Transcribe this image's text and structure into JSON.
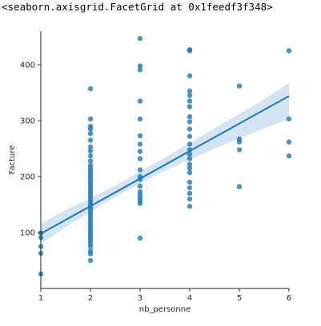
{
  "output_text": "<seaborn.axisgrid.FacetGrid at 0x1feedf3f348>",
  "colors": {
    "points": "#1f77b4",
    "line": "#1f77b4",
    "ci_band": "#c6dbef",
    "axis": "#262626"
  },
  "chart_data": {
    "type": "scatter",
    "title": "",
    "xlabel": "nb_personne",
    "ylabel": "Facture",
    "xlim": [
      1,
      6
    ],
    "ylim": [
      0,
      460
    ],
    "xticks": [
      1,
      2,
      3,
      4,
      5,
      6
    ],
    "yticks": [
      100,
      200,
      300,
      400
    ],
    "grid": false,
    "points": [
      {
        "x": 1,
        "y": 26
      },
      {
        "x": 1,
        "y": 63
      },
      {
        "x": 1,
        "y": 75
      },
      {
        "x": 1,
        "y": 91
      },
      {
        "x": 1,
        "y": 99
      },
      {
        "x": 2,
        "y": 50
      },
      {
        "x": 2,
        "y": 62
      },
      {
        "x": 2,
        "y": 67
      },
      {
        "x": 2,
        "y": 75
      },
      {
        "x": 2,
        "y": 80
      },
      {
        "x": 2,
        "y": 85
      },
      {
        "x": 2,
        "y": 90
      },
      {
        "x": 2,
        "y": 95
      },
      {
        "x": 2,
        "y": 100
      },
      {
        "x": 2,
        "y": 105
      },
      {
        "x": 2,
        "y": 110
      },
      {
        "x": 2,
        "y": 115
      },
      {
        "x": 2,
        "y": 120
      },
      {
        "x": 2,
        "y": 125
      },
      {
        "x": 2,
        "y": 130
      },
      {
        "x": 2,
        "y": 135
      },
      {
        "x": 2,
        "y": 140
      },
      {
        "x": 2,
        "y": 145
      },
      {
        "x": 2,
        "y": 150
      },
      {
        "x": 2,
        "y": 155
      },
      {
        "x": 2,
        "y": 160
      },
      {
        "x": 2,
        "y": 165
      },
      {
        "x": 2,
        "y": 170
      },
      {
        "x": 2,
        "y": 175
      },
      {
        "x": 2,
        "y": 180
      },
      {
        "x": 2,
        "y": 185
      },
      {
        "x": 2,
        "y": 190
      },
      {
        "x": 2,
        "y": 195
      },
      {
        "x": 2,
        "y": 200
      },
      {
        "x": 2,
        "y": 205
      },
      {
        "x": 2,
        "y": 210
      },
      {
        "x": 2,
        "y": 215
      },
      {
        "x": 2,
        "y": 220
      },
      {
        "x": 2,
        "y": 228
      },
      {
        "x": 2,
        "y": 237
      },
      {
        "x": 2,
        "y": 246
      },
      {
        "x": 2,
        "y": 253
      },
      {
        "x": 2,
        "y": 265
      },
      {
        "x": 2,
        "y": 277
      },
      {
        "x": 2,
        "y": 285
      },
      {
        "x": 2,
        "y": 290
      },
      {
        "x": 2,
        "y": 303
      },
      {
        "x": 2,
        "y": 357
      },
      {
        "x": 3,
        "y": 90
      },
      {
        "x": 3,
        "y": 152
      },
      {
        "x": 3,
        "y": 157
      },
      {
        "x": 3,
        "y": 162
      },
      {
        "x": 3,
        "y": 167
      },
      {
        "x": 3,
        "y": 173
      },
      {
        "x": 3,
        "y": 183
      },
      {
        "x": 3,
        "y": 195
      },
      {
        "x": 3,
        "y": 200
      },
      {
        "x": 3,
        "y": 212
      },
      {
        "x": 3,
        "y": 232
      },
      {
        "x": 3,
        "y": 245
      },
      {
        "x": 3,
        "y": 258
      },
      {
        "x": 3,
        "y": 273
      },
      {
        "x": 3,
        "y": 303
      },
      {
        "x": 3,
        "y": 335
      },
      {
        "x": 3,
        "y": 391
      },
      {
        "x": 3,
        "y": 398
      },
      {
        "x": 3,
        "y": 447
      },
      {
        "x": 4,
        "y": 147
      },
      {
        "x": 4,
        "y": 160
      },
      {
        "x": 4,
        "y": 170
      },
      {
        "x": 4,
        "y": 180
      },
      {
        "x": 4,
        "y": 190
      },
      {
        "x": 4,
        "y": 207
      },
      {
        "x": 4,
        "y": 215
      },
      {
        "x": 4,
        "y": 222
      },
      {
        "x": 4,
        "y": 232
      },
      {
        "x": 4,
        "y": 240
      },
      {
        "x": 4,
        "y": 248
      },
      {
        "x": 4,
        "y": 258
      },
      {
        "x": 4,
        "y": 272
      },
      {
        "x": 4,
        "y": 285
      },
      {
        "x": 4,
        "y": 298
      },
      {
        "x": 4,
        "y": 307
      },
      {
        "x": 4,
        "y": 325
      },
      {
        "x": 4,
        "y": 335
      },
      {
        "x": 4,
        "y": 345
      },
      {
        "x": 4,
        "y": 353
      },
      {
        "x": 4,
        "y": 380
      },
      {
        "x": 4,
        "y": 425
      },
      {
        "x": 4,
        "y": 427
      },
      {
        "x": 5,
        "y": 182
      },
      {
        "x": 5,
        "y": 248
      },
      {
        "x": 5,
        "y": 262
      },
      {
        "x": 5,
        "y": 267
      },
      {
        "x": 5,
        "y": 362
      },
      {
        "x": 6,
        "y": 237
      },
      {
        "x": 6,
        "y": 262
      },
      {
        "x": 6,
        "y": 303
      },
      {
        "x": 6,
        "y": 425
      }
    ],
    "regression": {
      "x": [
        1,
        6
      ],
      "y": [
        98,
        344
      ]
    },
    "confidence_band": {
      "x": [
        1,
        1.5,
        2,
        2.5,
        3,
        3.5,
        4,
        4.5,
        5,
        5.5,
        6
      ],
      "lower": [
        80,
        109,
        137,
        164,
        188,
        210,
        230,
        250,
        268,
        286,
        303
      ],
      "upper": [
        116,
        140,
        161,
        184,
        209,
        234,
        260,
        286,
        312,
        338,
        368
      ]
    }
  }
}
